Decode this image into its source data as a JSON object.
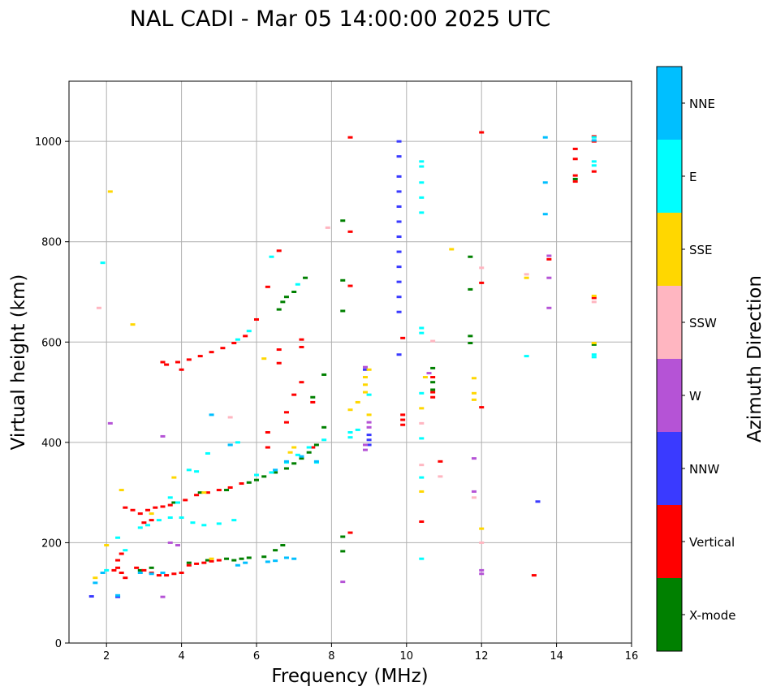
{
  "chart_data": {
    "type": "scatter",
    "title": "NAL CADI - Mar 05 14:00:00 2025 UTC",
    "xlabel": "Frequency (MHz)",
    "ylabel": "Virtual height (km)",
    "xlim": [
      1,
      16
    ],
    "ylim": [
      0,
      1120
    ],
    "xticks": [
      2,
      4,
      6,
      8,
      10,
      12,
      14,
      16
    ],
    "yticks": [
      0,
      200,
      400,
      600,
      800,
      1000
    ],
    "grid": true,
    "colorbar": {
      "label": "Azimuth Direction",
      "categories": [
        {
          "name": "X-mode",
          "color": "#008000"
        },
        {
          "name": "Vertical",
          "color": "#ff0000"
        },
        {
          "name": "NNW",
          "color": "#3a3aff"
        },
        {
          "name": "W",
          "color": "#b553d6"
        },
        {
          "name": "SSW",
          "color": "#ffb6c1"
        },
        {
          "name": "SSE",
          "color": "#ffd700"
        },
        {
          "name": "E",
          "color": "#00ffff"
        },
        {
          "name": "NNE",
          "color": "#00bfff"
        }
      ]
    },
    "series": [
      {
        "name": "X-mode",
        "color": "#008000",
        "points": [
          [
            5.4,
            165
          ],
          [
            5.6,
            168
          ],
          [
            5.8,
            170
          ],
          [
            6.2,
            172
          ],
          [
            6.5,
            185
          ],
          [
            6.7,
            195
          ],
          [
            6.0,
            325
          ],
          [
            6.2,
            332
          ],
          [
            6.5,
            340
          ],
          [
            6.8,
            348
          ],
          [
            7.0,
            358
          ],
          [
            7.2,
            368
          ],
          [
            7.4,
            380
          ],
          [
            7.6,
            395
          ],
          [
            7.8,
            430
          ],
          [
            7.8,
            535
          ],
          [
            7.5,
            490
          ],
          [
            6.6,
            665
          ],
          [
            6.7,
            680
          ],
          [
            6.8,
            690
          ],
          [
            7.0,
            700
          ],
          [
            7.3,
            728
          ],
          [
            8.3,
            212
          ],
          [
            8.3,
            183
          ],
          [
            8.3,
            662
          ],
          [
            8.3,
            723
          ],
          [
            8.3,
            842
          ],
          [
            10.7,
            505
          ],
          [
            10.7,
            520
          ],
          [
            10.7,
            548
          ],
          [
            11.7,
            598
          ],
          [
            11.7,
            612
          ],
          [
            11.7,
            705
          ],
          [
            11.7,
            770
          ],
          [
            14.5,
            925
          ],
          [
            15.0,
            595
          ],
          [
            2.9,
            145
          ],
          [
            3.2,
            150
          ],
          [
            4.2,
            160
          ],
          [
            4.7,
            165
          ],
          [
            5.2,
            168
          ],
          [
            3.8,
            280
          ],
          [
            4.5,
            300
          ],
          [
            5.2,
            305
          ],
          [
            5.8,
            320
          ]
        ]
      },
      {
        "name": "Vertical",
        "color": "#ff0000",
        "points": [
          [
            2.2,
            145
          ],
          [
            2.3,
            150
          ],
          [
            2.4,
            140
          ],
          [
            2.5,
            130
          ],
          [
            2.8,
            150
          ],
          [
            3.0,
            145
          ],
          [
            3.2,
            140
          ],
          [
            3.4,
            135
          ],
          [
            3.6,
            135
          ],
          [
            3.8,
            138
          ],
          [
            4.0,
            140
          ],
          [
            4.2,
            155
          ],
          [
            4.4,
            158
          ],
          [
            4.6,
            160
          ],
          [
            4.8,
            163
          ],
          [
            5.0,
            165
          ],
          [
            2.5,
            270
          ],
          [
            2.7,
            265
          ],
          [
            2.9,
            258
          ],
          [
            3.1,
            265
          ],
          [
            3.3,
            270
          ],
          [
            3.5,
            272
          ],
          [
            3.7,
            275
          ],
          [
            3.9,
            280
          ],
          [
            4.1,
            285
          ],
          [
            4.4,
            295
          ],
          [
            4.7,
            300
          ],
          [
            5.0,
            305
          ],
          [
            5.3,
            310
          ],
          [
            5.6,
            318
          ],
          [
            3.0,
            240
          ],
          [
            3.2,
            245
          ],
          [
            2.4,
            178
          ],
          [
            2.3,
            165
          ],
          [
            3.6,
            555
          ],
          [
            3.9,
            560
          ],
          [
            4.2,
            565
          ],
          [
            4.5,
            572
          ],
          [
            4.8,
            580
          ],
          [
            5.1,
            588
          ],
          [
            5.4,
            598
          ],
          [
            5.7,
            612
          ],
          [
            6.0,
            645
          ],
          [
            6.3,
            710
          ],
          [
            6.6,
            782
          ],
          [
            6.6,
            558
          ],
          [
            6.6,
            585
          ],
          [
            6.3,
            420
          ],
          [
            6.3,
            390
          ],
          [
            6.8,
            440
          ],
          [
            6.8,
            460
          ],
          [
            7.0,
            495
          ],
          [
            7.2,
            520
          ],
          [
            7.2,
            590
          ],
          [
            7.2,
            605
          ],
          [
            7.5,
            480
          ],
          [
            7.5,
            390
          ],
          [
            8.5,
            220
          ],
          [
            8.5,
            712
          ],
          [
            8.5,
            820
          ],
          [
            8.5,
            1008
          ],
          [
            9.9,
            435
          ],
          [
            9.9,
            445
          ],
          [
            9.9,
            455
          ],
          [
            9.9,
            608
          ],
          [
            10.4,
            242
          ],
          [
            10.7,
            490
          ],
          [
            10.7,
            500
          ],
          [
            10.7,
            530
          ],
          [
            10.9,
            362
          ],
          [
            12.0,
            470
          ],
          [
            12.0,
            718
          ],
          [
            12.0,
            1018
          ],
          [
            13.4,
            135
          ],
          [
            13.8,
            765
          ],
          [
            14.5,
            920
          ],
          [
            14.5,
            932
          ],
          [
            14.5,
            965
          ],
          [
            14.5,
            985
          ],
          [
            15.0,
            1000
          ],
          [
            15.0,
            1010
          ],
          [
            15.0,
            940
          ],
          [
            15.0,
            688
          ],
          [
            3.5,
            560
          ],
          [
            4.0,
            545
          ]
        ]
      },
      {
        "name": "NNW",
        "color": "#3a3aff",
        "points": [
          [
            1.6,
            93
          ],
          [
            2.3,
            92
          ],
          [
            9.8,
            575
          ],
          [
            9.8,
            660
          ],
          [
            9.8,
            690
          ],
          [
            9.8,
            720
          ],
          [
            9.8,
            750
          ],
          [
            9.8,
            780
          ],
          [
            9.8,
            810
          ],
          [
            9.8,
            840
          ],
          [
            9.8,
            870
          ],
          [
            9.8,
            900
          ],
          [
            9.8,
            930
          ],
          [
            9.8,
            970
          ],
          [
            9.8,
            1000
          ],
          [
            9.0,
            395
          ],
          [
            9.0,
            405
          ],
          [
            9.0,
            415
          ],
          [
            13.5,
            282
          ],
          [
            8.9,
            545
          ]
        ]
      },
      {
        "name": "W",
        "color": "#b553d6",
        "points": [
          [
            2.1,
            438
          ],
          [
            3.5,
            412
          ],
          [
            3.5,
            92
          ],
          [
            8.3,
            122
          ],
          [
            8.9,
            385
          ],
          [
            8.9,
            395
          ],
          [
            9.0,
            430
          ],
          [
            9.0,
            440
          ],
          [
            8.9,
            550
          ],
          [
            10.6,
            538
          ],
          [
            11.8,
            302
          ],
          [
            11.8,
            368
          ],
          [
            12.0,
            138
          ],
          [
            12.0,
            145
          ],
          [
            13.8,
            728
          ],
          [
            13.8,
            668
          ],
          [
            13.8,
            772
          ],
          [
            3.7,
            200
          ],
          [
            3.9,
            195
          ]
        ]
      },
      {
        "name": "SSW",
        "color": "#ffb6c1",
        "points": [
          [
            1.8,
            668
          ],
          [
            10.4,
            438
          ],
          [
            10.4,
            355
          ],
          [
            10.7,
            602
          ],
          [
            10.9,
            332
          ],
          [
            11.8,
            290
          ],
          [
            12.0,
            200
          ],
          [
            12.0,
            748
          ],
          [
            7.9,
            828
          ],
          [
            15.0,
            680
          ],
          [
            13.2,
            735
          ],
          [
            5.3,
            450
          ]
        ]
      },
      {
        "name": "SSE",
        "color": "#ffd700",
        "points": [
          [
            2.1,
            900
          ],
          [
            2.7,
            635
          ],
          [
            2.0,
            195
          ],
          [
            2.4,
            305
          ],
          [
            3.2,
            258
          ],
          [
            3.8,
            330
          ],
          [
            4.6,
            300
          ],
          [
            6.2,
            567
          ],
          [
            6.9,
            380
          ],
          [
            7.0,
            390
          ],
          [
            8.5,
            465
          ],
          [
            8.7,
            480
          ],
          [
            8.9,
            500
          ],
          [
            8.9,
            515
          ],
          [
            8.9,
            530
          ],
          [
            9.0,
            545
          ],
          [
            9.0,
            455
          ],
          [
            10.4,
            302
          ],
          [
            10.4,
            468
          ],
          [
            10.5,
            530
          ],
          [
            11.2,
            785
          ],
          [
            11.8,
            485
          ],
          [
            11.8,
            498
          ],
          [
            11.8,
            528
          ],
          [
            12.0,
            228
          ],
          [
            13.2,
            728
          ],
          [
            15.0,
            692
          ],
          [
            15.0,
            598
          ],
          [
            1.7,
            130
          ],
          [
            4.8,
            168
          ]
        ]
      },
      {
        "name": "E",
        "color": "#00ffff",
        "points": [
          [
            1.9,
            758
          ],
          [
            2.0,
            145
          ],
          [
            2.3,
            210
          ],
          [
            2.5,
            185
          ],
          [
            2.9,
            230
          ],
          [
            3.1,
            235
          ],
          [
            3.4,
            245
          ],
          [
            3.7,
            250
          ],
          [
            4.0,
            250
          ],
          [
            4.3,
            240
          ],
          [
            4.6,
            235
          ],
          [
            5.0,
            238
          ],
          [
            5.4,
            245
          ],
          [
            3.7,
            290
          ],
          [
            3.9,
            280
          ],
          [
            4.2,
            345
          ],
          [
            4.4,
            342
          ],
          [
            4.7,
            378
          ],
          [
            5.3,
            395
          ],
          [
            5.5,
            400
          ],
          [
            6.0,
            335
          ],
          [
            6.4,
            340
          ],
          [
            6.8,
            360
          ],
          [
            7.1,
            375
          ],
          [
            7.4,
            390
          ],
          [
            7.6,
            360
          ],
          [
            7.8,
            405
          ],
          [
            5.5,
            605
          ],
          [
            5.8,
            622
          ],
          [
            6.4,
            770
          ],
          [
            7.1,
            715
          ],
          [
            8.5,
            410
          ],
          [
            8.5,
            420
          ],
          [
            8.7,
            425
          ],
          [
            9.0,
            495
          ],
          [
            10.4,
            168
          ],
          [
            10.4,
            330
          ],
          [
            10.4,
            408
          ],
          [
            10.4,
            498
          ],
          [
            10.4,
            628
          ],
          [
            10.4,
            618
          ],
          [
            10.4,
            858
          ],
          [
            10.4,
            888
          ],
          [
            10.4,
            918
          ],
          [
            10.4,
            950
          ],
          [
            10.4,
            960
          ],
          [
            13.2,
            572
          ],
          [
            15.0,
            575
          ],
          [
            15.0,
            570
          ],
          [
            15.0,
            960
          ],
          [
            15.0,
            952
          ],
          [
            15.0,
            1008
          ]
        ]
      },
      {
        "name": "NNE",
        "color": "#00bfff",
        "points": [
          [
            1.7,
            120
          ],
          [
            1.9,
            140
          ],
          [
            2.3,
            95
          ],
          [
            2.9,
            140
          ],
          [
            3.2,
            138
          ],
          [
            3.5,
            140
          ],
          [
            5.5,
            155
          ],
          [
            5.7,
            160
          ],
          [
            6.3,
            162
          ],
          [
            6.5,
            164
          ],
          [
            6.8,
            170
          ],
          [
            7.0,
            168
          ],
          [
            4.8,
            455
          ],
          [
            5.3,
            395
          ],
          [
            6.5,
            345
          ],
          [
            6.8,
            362
          ],
          [
            7.2,
            372
          ],
          [
            7.6,
            362
          ],
          [
            13.7,
            855
          ],
          [
            13.7,
            918
          ],
          [
            13.7,
            1008
          ],
          [
            15.0,
            1002
          ]
        ]
      }
    ]
  }
}
